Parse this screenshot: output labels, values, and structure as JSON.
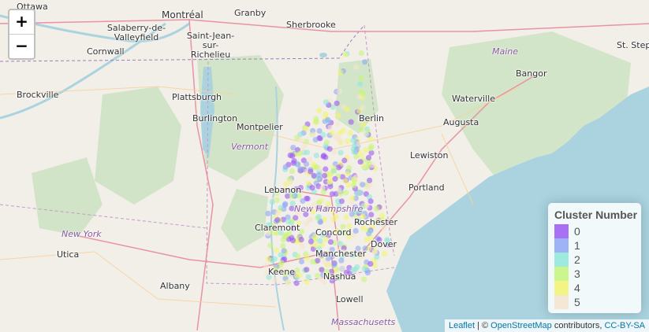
{
  "map": {
    "zoom_in_label": "+",
    "zoom_out_label": "−",
    "cities": [
      "Ottawa",
      "Montréal",
      "Granby",
      "Sherbrooke",
      "Salaberry-de-Valleyfield",
      "Saint-Jean-sur-Richelieu",
      "Cornwall",
      "Brockville",
      "Plattsburgh",
      "Burlington",
      "Montpelier",
      "Lebanon",
      "Claremont",
      "Keene",
      "Concord",
      "Manchester",
      "Nashua",
      "Rochester",
      "Dover",
      "Berlin",
      "Portland",
      "Lewiston",
      "Augusta",
      "Waterville",
      "Bangor",
      "St. Stephen",
      "Utica",
      "Albany",
      "Lowell"
    ],
    "regions": [
      "Vermont",
      "New Hampshire",
      "New York",
      "Maine",
      "Massachusetts"
    ],
    "legend": {
      "title": "Cluster Number",
      "items": [
        {
          "label": "0",
          "color": "#9b59f2"
        },
        {
          "label": "1",
          "color": "#8fa6f5"
        },
        {
          "label": "2",
          "color": "#8fe8d8"
        },
        {
          "label": "3",
          "color": "#c6f57a"
        },
        {
          "label": "4",
          "color": "#f2f56e"
        },
        {
          "label": "5",
          "color": "#f5e4cf"
        }
      ]
    },
    "attribution": {
      "leaflet": "Leaflet",
      "sep": " | © ",
      "osm": "OpenStreetMap",
      "contrib": " contributors, ",
      "license": "CC-BY-SA"
    }
  }
}
